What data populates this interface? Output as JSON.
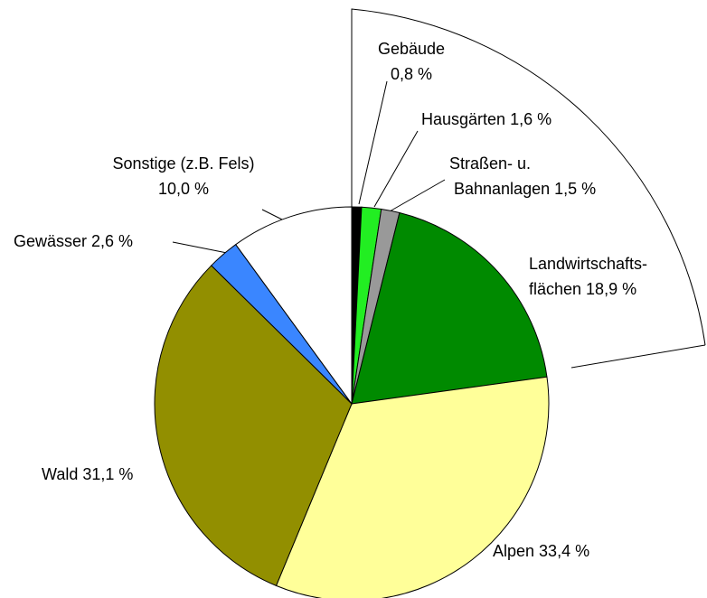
{
  "chart_data": {
    "type": "pie",
    "categories": [
      "Gebäude",
      "Hausgärten",
      "Straßen- u. Bahnanlagen",
      "Landwirtschafts-flächen",
      "Alpen",
      "Wald",
      "Gewässer",
      "Sonstige (z.B. Fels)"
    ],
    "values": [
      0.8,
      1.6,
      1.5,
      18.9,
      33.4,
      31.1,
      2.6,
      10.0
    ],
    "value_labels": [
      "0,8 %",
      "1,6 %",
      "1,5 %",
      "18,9 %",
      "33,4 %",
      "31,1 %",
      "2,6 %",
      "10,0 %"
    ],
    "colors": [
      "#000000",
      "#22ee22",
      "#999999",
      "#008a00",
      "#ffff99",
      "#928f00",
      "#3a86ff",
      "#ffffff"
    ]
  }
}
